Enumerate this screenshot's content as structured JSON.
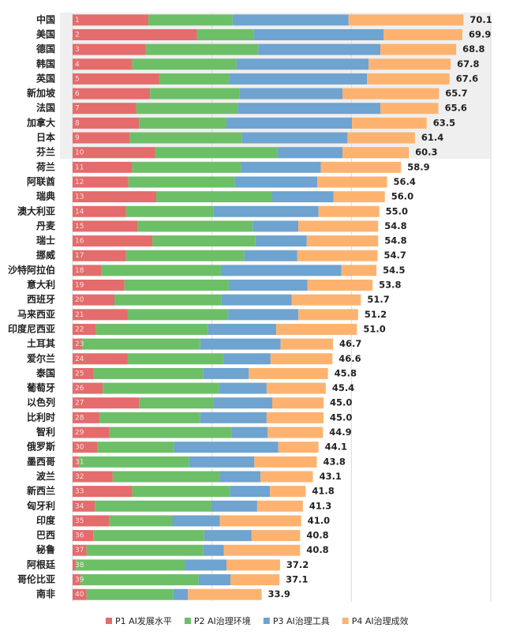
{
  "chart_data": {
    "type": "stacked-bar-horizontal",
    "categories": [
      "中国",
      "美国",
      "德国",
      "韩国",
      "英国",
      "新加坡",
      "法国",
      "加拿大",
      "日本",
      "芬兰",
      "荷兰",
      "阿联酋",
      "瑞典",
      "澳大利亚",
      "丹麦",
      "瑞士",
      "挪威",
      "沙特阿拉伯",
      "意大利",
      "西班牙",
      "马来西亚",
      "印度尼西亚",
      "土耳其",
      "爱尔兰",
      "泰国",
      "葡萄牙",
      "以色列",
      "比利时",
      "智利",
      "俄罗斯",
      "墨西哥",
      "波兰",
      "新西兰",
      "匈牙利",
      "印度",
      "巴西",
      "秘鲁",
      "阿根廷",
      "哥伦比亚",
      "南非"
    ],
    "ranks": [
      1,
      2,
      3,
      4,
      5,
      6,
      7,
      8,
      9,
      10,
      11,
      12,
      13,
      14,
      15,
      16,
      17,
      18,
      19,
      20,
      21,
      22,
      23,
      24,
      25,
      26,
      27,
      28,
      29,
      30,
      31,
      32,
      33,
      34,
      35,
      36,
      37,
      38,
      39,
      40
    ],
    "series": [
      {
        "name": "P1 AI发展水平",
        "color": "#e46c6c",
        "values": [
          13.6,
          22.3,
          13.1,
          10.7,
          15.5,
          13.9,
          11.4,
          11.9,
          10.3,
          14.8,
          10.7,
          10.0,
          15.0,
          9.6,
          11.7,
          14.3,
          9.6,
          5.1,
          9.3,
          7.5,
          9.9,
          4.2,
          1.7,
          9.9,
          3.8,
          5.4,
          11.9,
          4.8,
          6.6,
          4.5,
          1.1,
          7.2,
          10.7,
          4.0,
          6.6,
          3.7,
          2.5,
          0.6,
          1.4,
          2.5
        ]
      },
      {
        "name": "P2 AI治理环境",
        "color": "#6dbf67",
        "values": [
          15.1,
          10.2,
          20.2,
          18.7,
          12.6,
          16.0,
          18.2,
          15.7,
          20.1,
          21.9,
          19.5,
          19.1,
          20.8,
          15.7,
          20.6,
          18.5,
          21.2,
          21.5,
          18.7,
          19.2,
          18.0,
          20.1,
          21.2,
          17.1,
          19.6,
          20.9,
          13.3,
          18.1,
          21.9,
          13.7,
          19.8,
          19.2,
          17.5,
          20.9,
          11.3,
          19.9,
          20.9,
          19.5,
          21.2,
          15.5
        ]
      },
      {
        "name": "P3 AI治理工具",
        "color": "#6fa3d0",
        "values": [
          20.8,
          23.3,
          21.9,
          23.7,
          24.7,
          18.5,
          25.6,
          22.5,
          18.9,
          11.7,
          14.3,
          14.8,
          11.0,
          18.8,
          8.2,
          9.2,
          9.5,
          21.6,
          14.1,
          12.6,
          12.6,
          12.2,
          14.4,
          8.5,
          8.2,
          8.5,
          10.6,
          11.9,
          6.5,
          18.7,
          11.7,
          7.3,
          7.2,
          8.2,
          8.5,
          8.5,
          3.7,
          7.5,
          5.7,
          2.7
        ]
      },
      {
        "name": "P4 AI治理成效",
        "color": "#fdb36f",
        "values": [
          20.6,
          14.1,
          13.6,
          14.7,
          14.8,
          17.3,
          10.4,
          13.4,
          12.1,
          11.9,
          14.4,
          12.5,
          9.2,
          10.9,
          14.3,
          12.8,
          14.4,
          6.3,
          11.7,
          12.4,
          10.7,
          14.5,
          9.4,
          11.1,
          14.2,
          10.6,
          9.2,
          10.2,
          9.9,
          7.2,
          11.2,
          9.4,
          6.4,
          8.2,
          14.6,
          8.7,
          13.7,
          9.6,
          8.8,
          13.2
        ]
      }
    ],
    "totals": [
      70.1,
      69.9,
      68.8,
      67.8,
      67.6,
      65.7,
      65.6,
      63.5,
      61.4,
      60.3,
      58.9,
      56.4,
      56.0,
      55.0,
      54.8,
      54.8,
      54.7,
      54.5,
      53.8,
      51.7,
      51.2,
      51.0,
      46.7,
      46.6,
      45.8,
      45.4,
      45.0,
      45.0,
      44.9,
      44.1,
      43.8,
      43.1,
      41.8,
      41.3,
      41.0,
      40.8,
      40.8,
      37.2,
      37.1,
      33.9
    ],
    "totals_labels": [
      "70.1",
      "69.9",
      "68.8",
      "67.8",
      "67.6",
      "65.7",
      "65.6",
      "63.5",
      "61.4",
      "60.3",
      "58.9",
      "56.4",
      "56.0",
      "55.0",
      "54.8",
      "54.8",
      "54.7",
      "54.5",
      "53.8",
      "51.7",
      "51.2",
      "51.0",
      "46.7",
      "46.6",
      "45.8",
      "45.4",
      "45.0",
      "45.0",
      "44.9",
      "44.1",
      "43.8",
      "43.1",
      "41.8",
      "41.3",
      "41.0",
      "40.8",
      "40.8",
      "37.2",
      "37.1",
      "33.9"
    ],
    "xlim": [
      0,
      75
    ],
    "xticks": [
      0,
      25,
      50,
      75
    ],
    "grid": true
  }
}
